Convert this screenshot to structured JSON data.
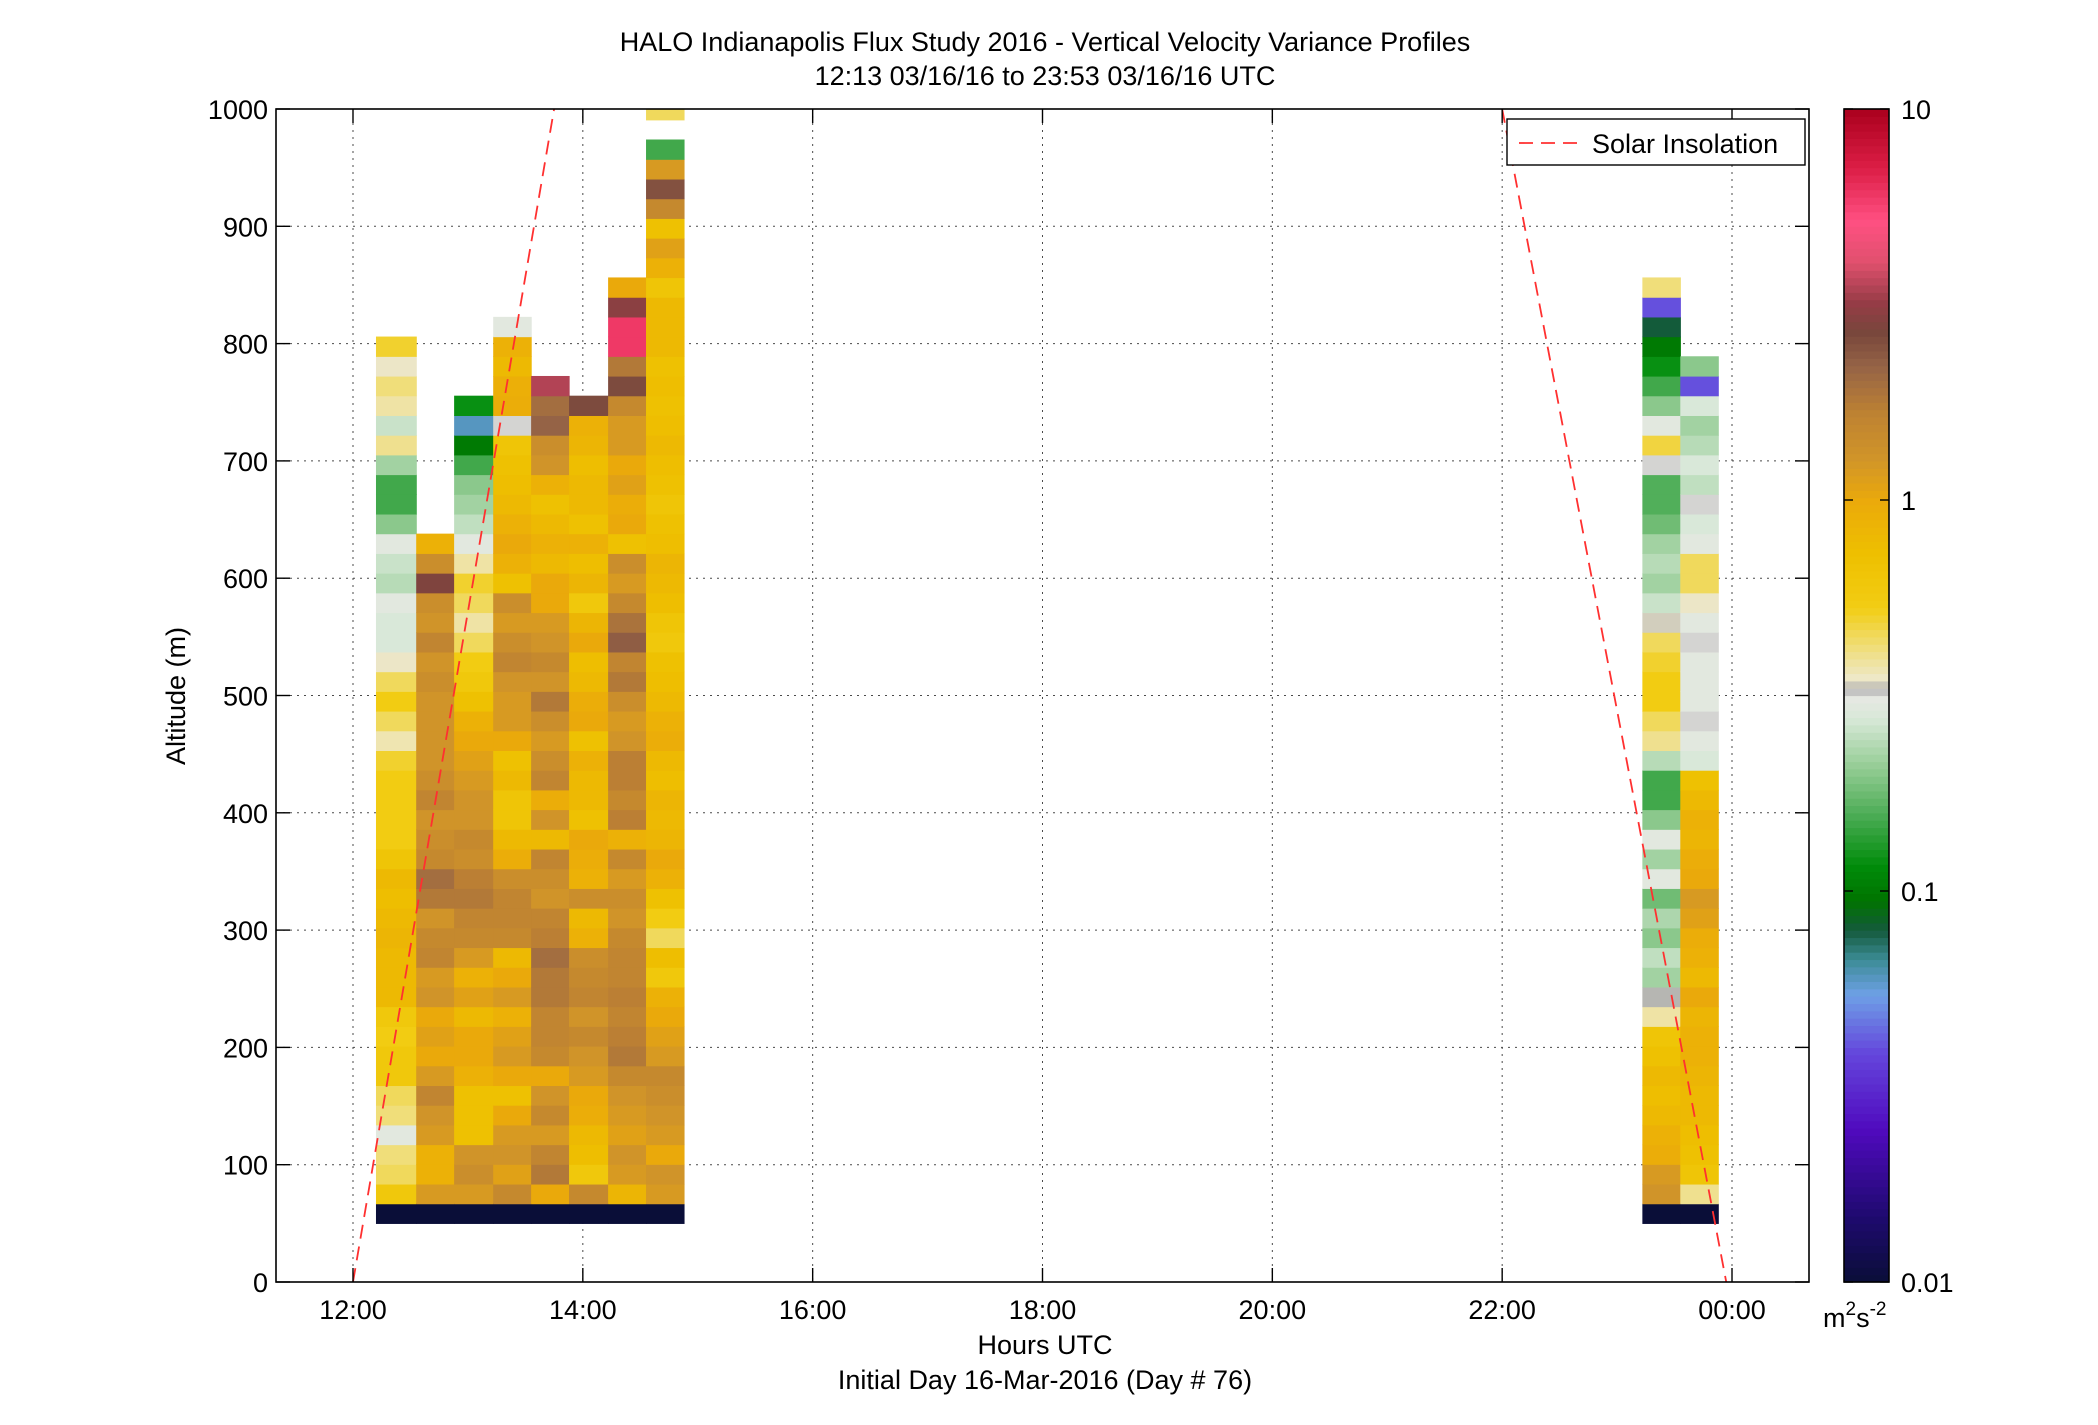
{
  "chart_data": {
    "type": "heatmap",
    "title": "HALO Indianapolis Flux Study 2016 - Vertical Velocity Variance Profiles",
    "subtitle": "12:13 03/16/16 to 23:53 03/16/16  UTC",
    "xlabel": "Hours UTC",
    "xlabel2": "Initial Day 16-Mar-2016 (Day # 76)",
    "ylabel": "Altitude (m)",
    "xlim": [
      11.33,
      24.67
    ],
    "ylim": [
      0,
      1000
    ],
    "x_ticks": [
      {
        "value": 12,
        "label": "12:00"
      },
      {
        "value": 14,
        "label": "14:00"
      },
      {
        "value": 16,
        "label": "16:00"
      },
      {
        "value": 18,
        "label": "18:00"
      },
      {
        "value": 20,
        "label": "20:00"
      },
      {
        "value": 22,
        "label": "22:00"
      },
      {
        "value": 24,
        "label": "00:00"
      }
    ],
    "y_ticks": [
      {
        "value": 0,
        "label": "0"
      },
      {
        "value": 100,
        "label": "100"
      },
      {
        "value": 200,
        "label": "200"
      },
      {
        "value": 300,
        "label": "300"
      },
      {
        "value": 400,
        "label": "400"
      },
      {
        "value": 500,
        "label": "500"
      },
      {
        "value": 600,
        "label": "600"
      },
      {
        "value": 700,
        "label": "700"
      },
      {
        "value": 800,
        "label": "800"
      },
      {
        "value": 900,
        "label": "900"
      },
      {
        "value": 1000,
        "label": "1000"
      }
    ],
    "grid": true,
    "color_scale": {
      "type": "log",
      "min": 0.01,
      "max": 10,
      "ticks": [
        {
          "value": 0.01,
          "label": "0.01"
        },
        {
          "value": 0.1,
          "label": "0.1"
        },
        {
          "value": 1,
          "label": "1"
        },
        {
          "value": 10,
          "label": "10"
        }
      ],
      "unit_base": "m",
      "unit_exp1": "2",
      "unit_mid": "s",
      "unit_exp2": "-2"
    },
    "legend": {
      "placement": "top-right",
      "entries": [
        {
          "label": "Solar Insolation",
          "color": "#ff3030",
          "style": "dashed"
        }
      ]
    },
    "solar_insolation": [
      {
        "x": [
          12.0,
          13.75
        ],
        "y": [
          0,
          1000
        ]
      },
      {
        "x": [
          22.0,
          23.95
        ],
        "y": [
          1000,
          0
        ]
      }
    ],
    "gate_height_m": 16.8,
    "gate_start_m": 50,
    "profiles": [
      {
        "x0": 12.2,
        "x1": 12.55,
        "v": [
          0.006,
          0.6,
          0.45,
          0.42,
          0.3,
          0.42,
          0.45,
          0.6,
          0.6,
          0.55,
          0.6,
          0.8,
          0.8,
          0.8,
          0.85,
          0.8,
          0.75,
          0.8,
          0.65,
          0.55,
          0.55,
          0.55,
          0.55,
          0.5,
          0.37,
          0.45,
          0.55,
          0.45,
          0.35,
          0.28,
          0.28,
          0.3,
          0.24,
          0.26,
          0.3,
          0.2,
          0.15,
          0.15,
          0.22,
          0.4,
          0.26,
          0.38,
          0.42,
          0.35,
          0.5
        ]
      },
      {
        "x0": 12.55,
        "x1": 12.88,
        "v": [
          0.006,
          1.2,
          0.9,
          0.9,
          1.2,
          1.3,
          1.6,
          1.2,
          1.0,
          1.1,
          1.0,
          1.3,
          1.2,
          1.6,
          1.5,
          1.3,
          1.8,
          2.0,
          1.5,
          1.4,
          1.3,
          1.6,
          1.4,
          1.3,
          1.3,
          1.3,
          1.3,
          1.4,
          1.3,
          1.6,
          1.3,
          1.4,
          2.8,
          1.4,
          0.9
        ]
      },
      {
        "x0": 12.88,
        "x1": 13.22,
        "v": [
          0.006,
          1.2,
          1.4,
          1.3,
          0.7,
          0.7,
          0.7,
          0.9,
          1.0,
          1.0,
          0.8,
          1.1,
          0.9,
          1.2,
          1.5,
          1.6,
          1.8,
          1.7,
          1.4,
          1.5,
          1.3,
          1.3,
          1.2,
          1.1,
          1.0,
          0.9,
          0.7,
          0.6,
          0.55,
          0.45,
          0.38,
          0.45,
          0.5,
          0.38,
          0.3,
          0.25,
          0.22,
          0.2,
          0.15,
          0.1,
          0.06,
          0.12
        ]
      },
      {
        "x0": 13.22,
        "x1": 13.55,
        "v": [
          0.006,
          1.5,
          1.1,
          1.3,
          1.2,
          1.0,
          0.7,
          1.0,
          1.2,
          1.1,
          0.9,
          1.2,
          1.0,
          0.8,
          1.5,
          1.6,
          1.6,
          1.4,
          0.95,
          0.8,
          0.65,
          0.65,
          0.8,
          0.7,
          1.0,
          1.2,
          1.2,
          1.3,
          1.6,
          1.4,
          1.2,
          1.4,
          0.7,
          0.9,
          1.0,
          0.9,
          0.8,
          0.75,
          0.7,
          0.65,
          0.32,
          0.95,
          0.92,
          0.8,
          0.9,
          0.3
        ]
      },
      {
        "x0": 13.55,
        "x1": 13.88,
        "v": [
          0.006,
          1.0,
          1.8,
          1.6,
          1.2,
          1.5,
          1.3,
          1.0,
          1.5,
          1.6,
          1.6,
          1.8,
          1.8,
          2.0,
          1.7,
          1.6,
          1.3,
          1.4,
          1.6,
          0.8,
          1.3,
          0.95,
          1.6,
          1.4,
          1.2,
          1.4,
          1.8,
          1.3,
          1.5,
          1.3,
          1.2,
          1.0,
          1.0,
          0.8,
          0.9,
          0.8,
          0.7,
          0.9,
          1.3,
          1.4,
          2.2,
          2.0,
          3.5
        ]
      },
      {
        "x0": 13.88,
        "x1": 14.22,
        "v": [
          0.006,
          1.5,
          0.6,
          0.75,
          0.8,
          0.95,
          1.0,
          1.2,
          1.3,
          1.5,
          1.3,
          1.6,
          1.5,
          1.4,
          0.9,
          0.8,
          1.4,
          0.9,
          0.95,
          1.0,
          0.7,
          0.8,
          0.8,
          0.9,
          0.7,
          1.0,
          0.95,
          0.8,
          0.75,
          1.0,
          0.85,
          0.6,
          0.85,
          0.75,
          0.9,
          0.7,
          0.8,
          0.8,
          0.75,
          0.85,
          0.9,
          2.6
        ]
      },
      {
        "x0": 14.22,
        "x1": 14.55,
        "v": [
          0.006,
          0.85,
          1.2,
          1.3,
          1.1,
          1.2,
          1.3,
          1.5,
          1.8,
          1.7,
          1.6,
          1.7,
          1.6,
          1.6,
          1.5,
          1.3,
          1.4,
          1.2,
          1.5,
          0.9,
          1.7,
          1.5,
          1.7,
          1.7,
          1.3,
          1.2,
          1.4,
          1.8,
          1.6,
          2.3,
          1.9,
          1.5,
          1.2,
          1.4,
          0.7,
          1.0,
          0.95,
          1.1,
          1.0,
          1.2,
          1.2,
          1.5,
          2.6,
          1.8,
          6.0,
          6.0,
          3.0,
          1.0
        ]
      },
      {
        "x0": 14.55,
        "x1": 14.88,
        "v": [
          0.006,
          1.2,
          1.3,
          1.0,
          1.2,
          1.3,
          1.4,
          1.5,
          1.2,
          1.1,
          1.0,
          0.9,
          0.6,
          0.75,
          0.45,
          0.55,
          0.7,
          0.9,
          1.0,
          0.85,
          0.8,
          0.85,
          0.75,
          0.8,
          0.95,
          0.9,
          0.8,
          0.75,
          0.7,
          0.6,
          0.65,
          0.75,
          0.8,
          0.85,
          0.75,
          0.7,
          0.65,
          0.7,
          0.75,
          0.8,
          0.75,
          0.7,
          0.75,
          0.7,
          0.8,
          0.8,
          0.8,
          0.65,
          0.9,
          1.1,
          0.7,
          1.5,
          2.5,
          1.2,
          0.15,
          0.0,
          0.45
        ]
      },
      {
        "x0": 23.22,
        "x1": 23.55,
        "v": [
          0.006,
          1.3,
          1.2,
          0.95,
          0.9,
          0.8,
          0.75,
          0.8,
          0.7,
          0.65,
          0.38,
          0.33,
          0.22,
          0.25,
          0.2,
          0.23,
          0.18,
          0.3,
          0.22,
          0.3,
          0.2,
          0.15,
          0.15,
          0.24,
          0.4,
          0.45,
          0.55,
          0.55,
          0.5,
          0.45,
          0.34,
          0.26,
          0.22,
          0.24,
          0.22,
          0.18,
          0.16,
          0.16,
          0.32,
          0.48,
          0.3,
          0.2,
          0.15,
          0.12,
          0.1,
          0.08,
          0.04,
          0.42
        ]
      },
      {
        "x0": 23.55,
        "x1": 23.88,
        "v": [
          0.006,
          0.4,
          0.65,
          0.7,
          0.75,
          0.8,
          0.8,
          0.85,
          0.9,
          0.9,
          0.85,
          1.0,
          0.8,
          0.9,
          0.95,
          1.1,
          1.2,
          1.0,
          0.95,
          0.85,
          0.9,
          0.8,
          0.7,
          0.28,
          0.3,
          0.32,
          0.3,
          0.3,
          0.3,
          0.32,
          0.3,
          0.35,
          0.45,
          0.45,
          0.3,
          0.28,
          0.32,
          0.25,
          0.28,
          0.24,
          0.22,
          0.28,
          0.04,
          0.2
        ]
      }
    ]
  }
}
